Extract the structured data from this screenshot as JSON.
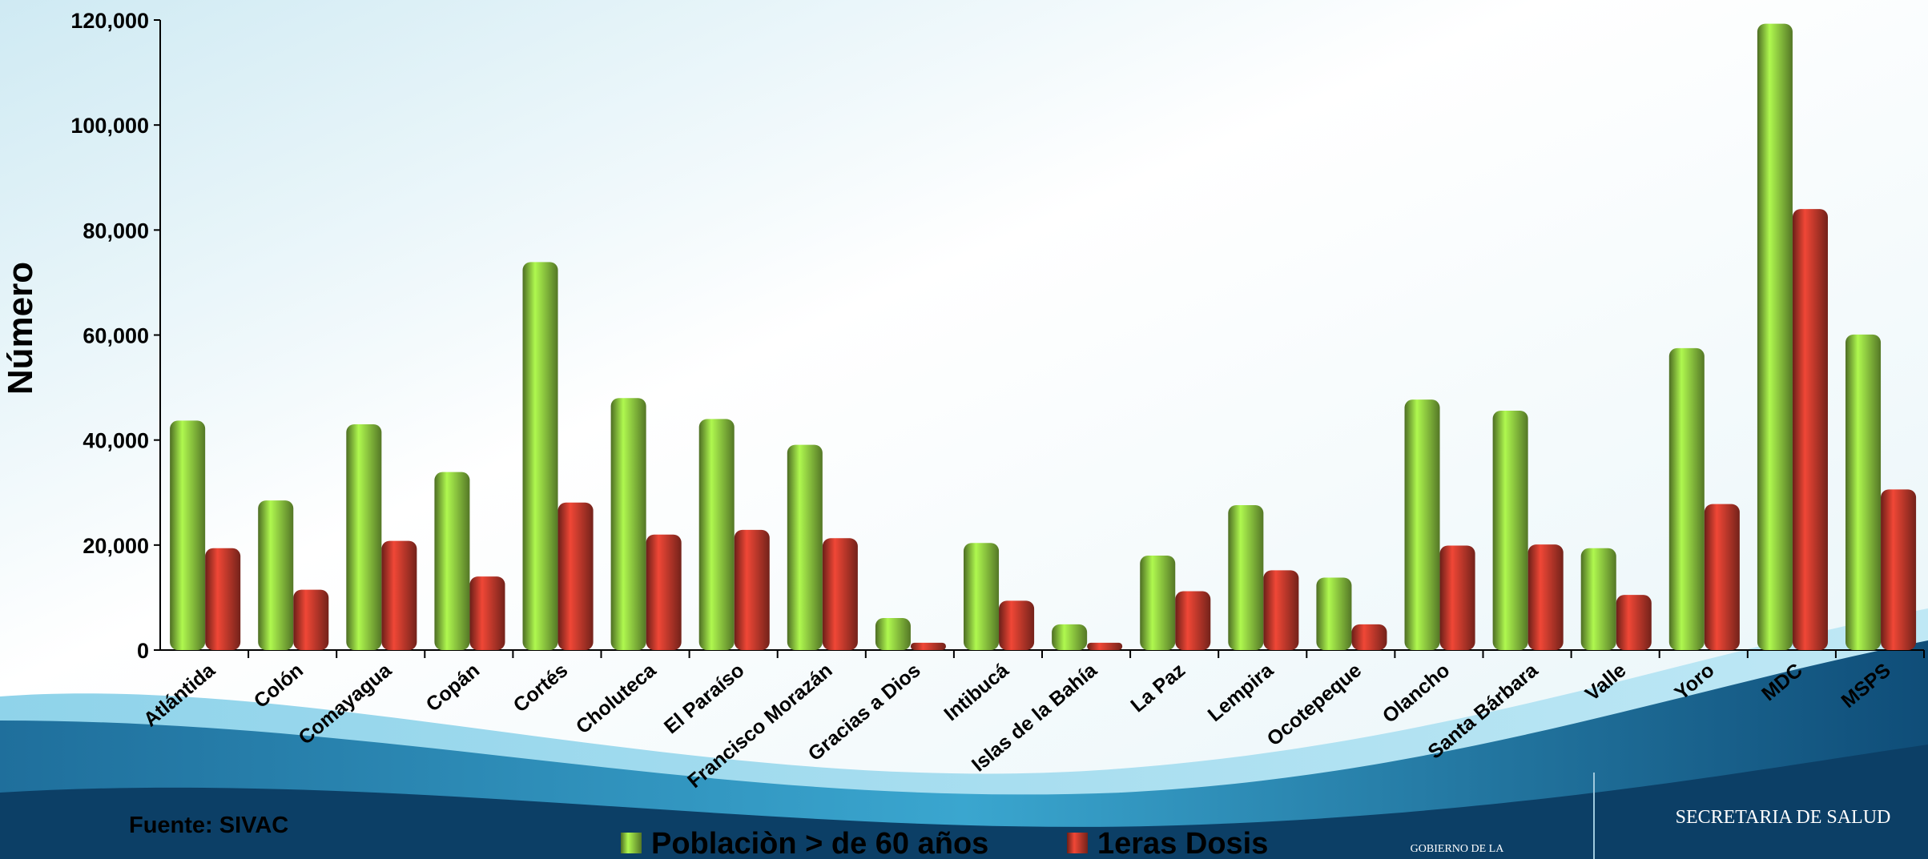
{
  "chart_data": {
    "type": "bar",
    "y_label": "Número",
    "categories": [
      "Atlántida",
      "Colón",
      "Comayagua",
      "Copán",
      "Cortés",
      "Choluteca",
      "El Paraíso",
      "Francisco Morazán",
      "Gracias a Dios",
      "Intibucá",
      "Islas de la Bahía",
      "La Paz",
      "Lempira",
      "Ocotepeque",
      "Olancho",
      "Santa Bárbara",
      "Valle",
      "Yoro",
      "MDC",
      "MSPS"
    ],
    "series": [
      {
        "name": "Poblaciòn > de 60 años",
        "color": "#8cc63f",
        "values": [
          43700,
          28500,
          43000,
          33900,
          73900,
          48000,
          44000,
          39100,
          6100,
          20400,
          4900,
          18000,
          27600,
          13800,
          47700,
          45600,
          19400,
          57500,
          119300,
          60100
        ]
      },
      {
        "name": "1eras Dosis",
        "color": "#c0392b",
        "values": [
          19400,
          11500,
          20800,
          14000,
          28100,
          22000,
          22900,
          21300,
          1400,
          9400,
          1400,
          11200,
          15200,
          4900,
          19900,
          20100,
          10500,
          27800,
          84000,
          30600
        ]
      }
    ],
    "ylim": [
      0,
      120000
    ],
    "yticks": [
      0,
      {
        "value": 20000,
        "label": "20,000"
      },
      {
        "value": 40000,
        "label": "40,000"
      },
      {
        "value": 60000,
        "label": "60,000"
      },
      {
        "value": 80000,
        "label": "80,000"
      },
      {
        "value": 100000,
        "label": "100,000"
      },
      {
        "value": 120000,
        "label": "120,000"
      }
    ],
    "source": "Fuente: SIVAC",
    "logo_text": "SECRETARIA DE SALUD",
    "logo_subtext": "GOBIERNO DE LA"
  }
}
